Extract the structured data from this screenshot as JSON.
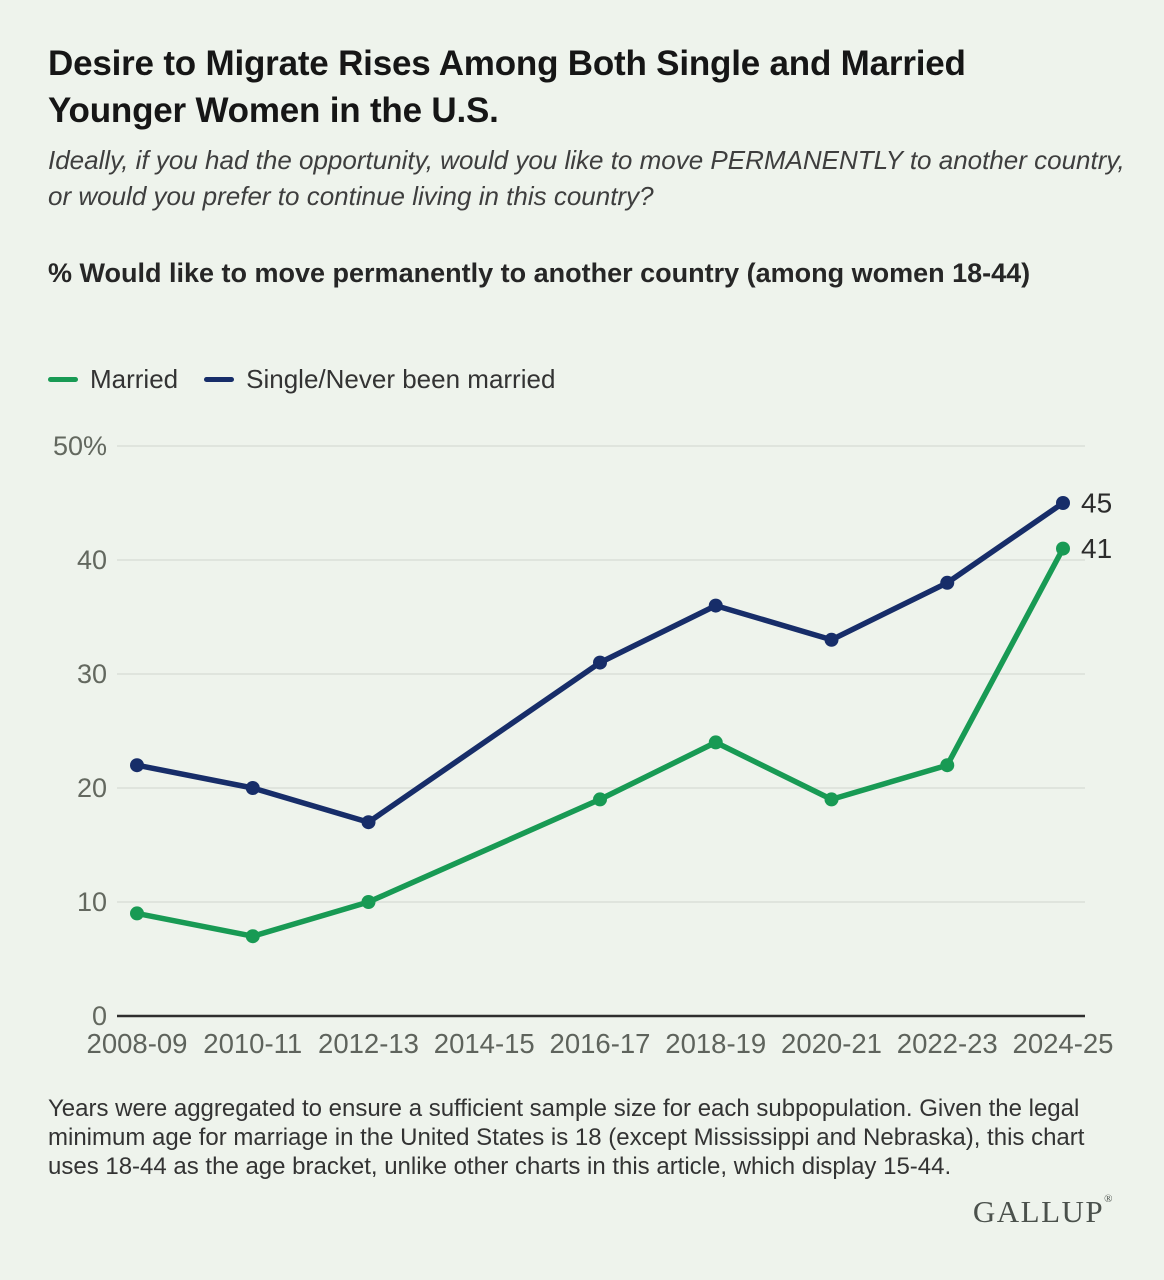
{
  "page": {
    "background": "#EEF3EC"
  },
  "header": {
    "title": "Desire to Migrate Rises Among Both Single and Married Younger Women in the U.S.",
    "subtitle": "Ideally, if you had the opportunity, would you like to move PERMANENTLY to another country, or would you prefer to continue living in this country?"
  },
  "section_label": "% Would like to move permanently to another country (among women 18-44)",
  "legend": [
    {
      "label": "Married",
      "color": "#189A54"
    },
    {
      "label": "Single/Never been married",
      "color": "#172D69"
    }
  ],
  "chart_data": {
    "type": "line",
    "title": "% Would like to move permanently to another country (among women 18-44)",
    "categories": [
      "2008-09",
      "2010-11",
      "2012-13",
      "2014-15",
      "2016-17",
      "2018-19",
      "2020-21",
      "2022-23",
      "2024-25"
    ],
    "series": [
      {
        "id": "married",
        "name": "Married",
        "color": "#189A54",
        "values": [
          9,
          7,
          10,
          null,
          19,
          24,
          19,
          22,
          41
        ],
        "end_label": "41"
      },
      {
        "id": "single",
        "name": "Single/Never been married",
        "color": "#172D69",
        "values": [
          22,
          20,
          17,
          null,
          31,
          36,
          33,
          38,
          45
        ],
        "end_label": "45"
      }
    ],
    "ylim": [
      0,
      50
    ],
    "yticks": [
      {
        "v": 50,
        "label": "50%"
      },
      {
        "v": 40,
        "label": "40"
      },
      {
        "v": 30,
        "label": "30"
      },
      {
        "v": 20,
        "label": "20"
      },
      {
        "v": 10,
        "label": "10"
      },
      {
        "v": 0,
        "label": "0"
      }
    ],
    "grid": true,
    "legend_position": "top"
  },
  "footnote": "Years were aggregated to ensure a sufficient sample size for each subpopulation. Given the legal minimum age for marriage in the United States is 18 (except Mississippi and Nebraska), this chart uses 18-44 as the age bracket, unlike other charts in this article, which display 15-44.",
  "logo": {
    "text": "GALLUP",
    "mark": "®"
  }
}
